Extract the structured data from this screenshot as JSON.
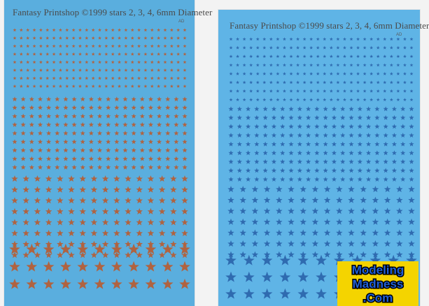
{
  "colors": {
    "background": "#f3f3f3",
    "sheet_left": "#5aaede",
    "sheet_right": "#5fb4e6",
    "stars_left": "#b06340",
    "stars_right": "#2f6bb0"
  },
  "icons": [
    "star-icon"
  ],
  "sheets": [
    {
      "title": "Fantasy Printshop ©1999 stars 2, 3, 4, 6mm Diameter",
      "mark": "AD",
      "star_color": "rust",
      "star_sizes_mm": [
        2,
        3,
        4,
        6
      ]
    },
    {
      "title": "Fantasy Printshop ©1999 stars 2, 3, 4, 6mm Diameter",
      "mark": "AD",
      "star_color": "blue",
      "star_sizes_mm": [
        2,
        3,
        4,
        6
      ]
    }
  ],
  "watermark": {
    "line1": "Modeling",
    "line2": "Madness",
    "line3": ".Com"
  }
}
